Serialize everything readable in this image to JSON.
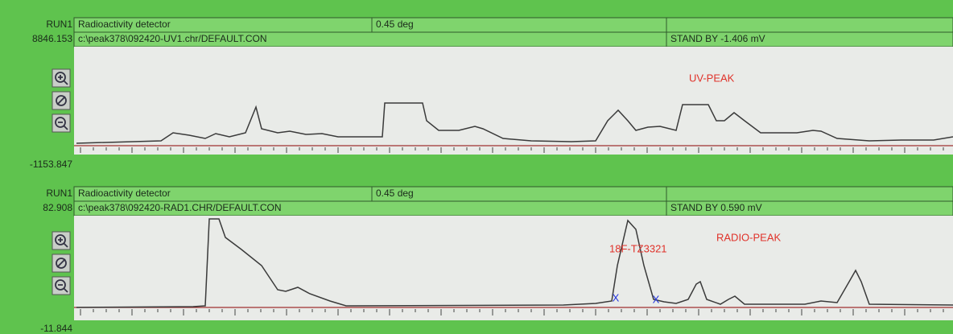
{
  "panels": [
    {
      "run": "RUN1",
      "detector": "Radioactivity detector",
      "angle": "0.45 deg",
      "y_max": "8846.153",
      "file": "c:\\peak378\\092420-UV1.chr/DEFAULT.CON",
      "status": "STAND BY -1.406 mV",
      "peak_label": "UV-PEAK",
      "y_min": "-1153.847"
    },
    {
      "run": "RUN1",
      "detector": "Radioactivity detector",
      "angle": "0.45 deg",
      "y_max": "82.908",
      "file": "c:\\peak378\\092420-RAD1.CHR/DEFAULT.CON",
      "status": "STAND BY 0.590 mV",
      "peak_label": "RADIO-PEAK",
      "annotation": "18F-TZ3321",
      "markers": [
        "X",
        "X"
      ],
      "y_min": "-11.844"
    }
  ]
}
